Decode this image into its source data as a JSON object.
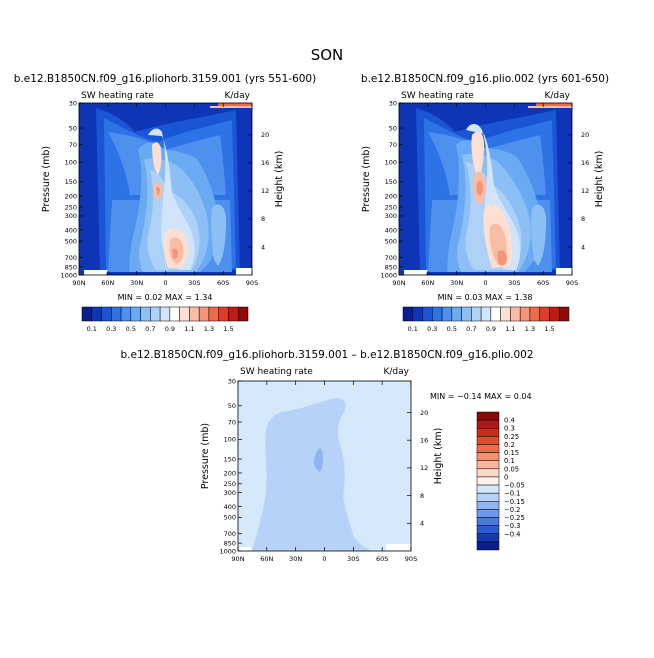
{
  "page_title": "SON",
  "panels": [
    {
      "title": "b.e12.B1850CN.f09_g16.pliohorb.3159.001 (yrs 551-600)",
      "left_label": "SW heating rate",
      "right_label": "K/day",
      "stats": "MIN =   0.02   MAX =    1.34"
    },
    {
      "title": "b.e12.B1850CN.f09_g16.plio.002 (yrs 601-650)",
      "left_label": "SW heating rate",
      "right_label": "K/day",
      "stats": "MIN =   0.03   MAX =    1.38"
    },
    {
      "title": "b.e12.B1850CN.f09_g16.pliohorb.3159.001  –  b.e12.B1850CN.f09_g16.plio.002",
      "left_label": "SW heating rate",
      "right_label": "K/day",
      "stats": "MIN =  −0.14    MAX =    0.04"
    }
  ],
  "axes": {
    "ylabel": "Pressure (mb)",
    "y2label": "Height (km)",
    "xticks": [
      "90N",
      "60N",
      "30N",
      "0",
      "30S",
      "60S",
      "90S"
    ],
    "pressure_ticks": [
      "30",
      "50",
      "70",
      "100",
      "150",
      "200",
      "250",
      "300",
      "400",
      "500",
      "700",
      "850",
      "1000"
    ],
    "height_ticks": [
      "20",
      "16",
      "12",
      "8",
      "4"
    ]
  },
  "colorbars": {
    "abs_labels": [
      "0.1",
      "0.3",
      "0.5",
      "0.7",
      "0.9",
      "1.1",
      "1.3",
      "1.5"
    ],
    "diff_labels": [
      "0.4",
      "0.3",
      "0.25",
      "0.2",
      "0.15",
      "0.1",
      "0.05",
      "0",
      "−0.05",
      "−0.1",
      "−0.15",
      "−0.2",
      "−0.25",
      "−0.3",
      "−0.4"
    ]
  },
  "colors": {
    "abs": [
      "#0a1f8f",
      "#0d35b5",
      "#1a55d5",
      "#2d73e6",
      "#4d90ee",
      "#6aaaf2",
      "#8cc0f5",
      "#aed1f7",
      "#d0e4fb",
      "#ffffff",
      "#fde0d2",
      "#f9bca5",
      "#f59478",
      "#ee6a4b",
      "#de3b28",
      "#c01a12",
      "#8f0a0a"
    ],
    "diff": [
      "#8b0a0a",
      "#b01818",
      "#cc2a1a",
      "#e24a2a",
      "#f06a48",
      "#f79072",
      "#fbb59c",
      "#fdd8c8",
      "#fdf2ec",
      "#d6e8fb",
      "#b6d2f8",
      "#8fb6f3",
      "#6d98ee",
      "#4a78e3",
      "#2b59d1",
      "#1538b0",
      "#0a1f8f"
    ]
  },
  "chart_data": [
    {
      "type": "contour",
      "title": "b.e12.B1850CN.f09_g16.pliohorb.3159.001 (yrs 551-600)",
      "xlabel": "",
      "ylabel": "Pressure (mb)",
      "y2label": "Height (km)",
      "xlim": [
        "90N",
        "90S"
      ],
      "ylim_mb": [
        1000,
        30
      ],
      "field": "SW heating rate",
      "units": "K/day",
      "min": 0.02,
      "max": 1.34
    },
    {
      "type": "contour",
      "title": "b.e12.B1850CN.f09_g16.plio.002 (yrs 601-650)",
      "xlabel": "",
      "ylabel": "Pressure (mb)",
      "y2label": "Height (km)",
      "xlim": [
        "90N",
        "90S"
      ],
      "ylim_mb": [
        1000,
        30
      ],
      "field": "SW heating rate",
      "units": "K/day",
      "min": 0.03,
      "max": 1.38
    },
    {
      "type": "contour",
      "title": "b.e12.B1850CN.f09_g16.pliohorb.3159.001 – b.e12.B1850CN.f09_g16.plio.002",
      "xlabel": "",
      "ylabel": "Pressure (mb)",
      "y2label": "Height (km)",
      "xlim": [
        "90N",
        "90S"
      ],
      "ylim_mb": [
        1000,
        30
      ],
      "field": "SW heating rate",
      "units": "K/day",
      "min": -0.14,
      "max": 0.04
    }
  ]
}
